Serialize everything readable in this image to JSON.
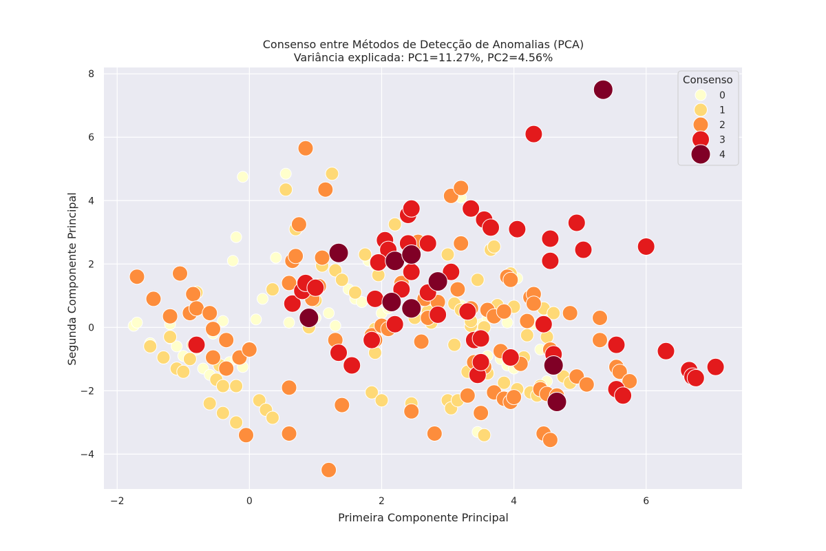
{
  "chart_data": {
    "type": "scatter",
    "title": "Consenso entre Métodos de Detecção de Anomalias (PCA)",
    "subtitle": "Variância explicada: PC1=11.27%, PC2=4.56%",
    "xlabel": "Primeira Componente Principal",
    "ylabel": "Segunda Componente Principal",
    "xlim": [
      -2.2,
      7.45
    ],
    "ylim": [
      -5.1,
      8.2
    ],
    "xticks": [
      -2,
      0,
      2,
      4,
      6
    ],
    "yticks": [
      -4,
      -2,
      0,
      2,
      4,
      6,
      8
    ],
    "grid": true,
    "legend": {
      "title": "Consenso",
      "position": "top-right",
      "entries": [
        {
          "label": "0",
          "color": "#ffffcc"
        },
        {
          "label": "1",
          "color": "#fed976"
        },
        {
          "label": "2",
          "color": "#fd8d3c"
        },
        {
          "label": "3",
          "color": "#e31a1c"
        },
        {
          "label": "4",
          "color": "#800026"
        }
      ]
    },
    "series": [
      {
        "name": "0",
        "points": [
          [
            -1.75,
            0.05
          ],
          [
            -1.7,
            0.15
          ],
          [
            -1.5,
            -0.5
          ],
          [
            -1.2,
            0.1
          ],
          [
            -1.2,
            -0.35
          ],
          [
            -1.1,
            -0.6
          ],
          [
            -1.0,
            -0.9
          ],
          [
            -0.9,
            -1.0
          ],
          [
            -0.8,
            -0.7
          ],
          [
            -0.7,
            -1.3
          ],
          [
            -0.6,
            -1.5
          ],
          [
            -0.55,
            -0.2
          ],
          [
            -0.4,
            0.2
          ],
          [
            -0.3,
            -1.1
          ],
          [
            -0.2,
            -1.0
          ],
          [
            -0.1,
            -1.25
          ],
          [
            -0.25,
            2.1
          ],
          [
            -0.2,
            2.85
          ],
          [
            -0.1,
            4.75
          ],
          [
            0.1,
            0.25
          ],
          [
            0.2,
            0.9
          ],
          [
            0.4,
            2.2
          ],
          [
            0.55,
            4.85
          ],
          [
            0.6,
            0.15
          ],
          [
            0.85,
            0.25
          ],
          [
            1.0,
            0.3
          ],
          [
            1.2,
            0.45
          ],
          [
            1.3,
            0.05
          ],
          [
            1.5,
            1.2
          ],
          [
            1.6,
            0.9
          ],
          [
            1.7,
            0.8
          ],
          [
            1.8,
            2.1
          ],
          [
            1.9,
            1.95
          ],
          [
            2.0,
            0.45
          ],
          [
            2.1,
            0.6
          ],
          [
            3.2,
            4.1
          ],
          [
            3.5,
            0.1
          ],
          [
            3.6,
            -0.9
          ],
          [
            3.8,
            -1.0
          ],
          [
            3.9,
            -1.2
          ],
          [
            3.9,
            0.15
          ],
          [
            4.05,
            1.55
          ],
          [
            4.3,
            0.1
          ],
          [
            4.4,
            -0.7
          ],
          [
            4.5,
            -1.7
          ],
          [
            4.6,
            -2.2
          ],
          [
            4.0,
            -1.3
          ],
          [
            3.45,
            -3.3
          ],
          [
            3.6,
            0.3
          ],
          [
            3.2,
            0.7
          ]
        ]
      },
      {
        "name": "1",
        "points": [
          [
            -1.5,
            -0.6
          ],
          [
            -1.2,
            -0.3
          ],
          [
            -1.1,
            -1.3
          ],
          [
            -1.0,
            -1.4
          ],
          [
            -0.9,
            -1.0
          ],
          [
            -0.85,
            -0.55
          ],
          [
            -0.8,
            1.1
          ],
          [
            -0.6,
            -2.4
          ],
          [
            -0.5,
            -1.65
          ],
          [
            -0.4,
            -2.7
          ],
          [
            -0.4,
            -1.85
          ],
          [
            -0.2,
            -3.0
          ],
          [
            -0.2,
            -1.85
          ],
          [
            0.0,
            -0.65
          ],
          [
            0.15,
            -2.3
          ],
          [
            0.25,
            -2.6
          ],
          [
            0.35,
            -2.85
          ],
          [
            0.35,
            1.2
          ],
          [
            0.55,
            4.35
          ],
          [
            0.7,
            3.1
          ],
          [
            0.85,
            1.4
          ],
          [
            0.9,
            0.0
          ],
          [
            1.0,
            0.85
          ],
          [
            1.1,
            1.95
          ],
          [
            1.25,
            4.85
          ],
          [
            1.3,
            1.8
          ],
          [
            1.4,
            1.5
          ],
          [
            1.6,
            1.1
          ],
          [
            1.75,
            2.3
          ],
          [
            1.85,
            -2.05
          ],
          [
            1.9,
            -0.8
          ],
          [
            1.95,
            1.65
          ],
          [
            2.0,
            -2.3
          ],
          [
            2.1,
            2.15
          ],
          [
            2.2,
            3.25
          ],
          [
            2.45,
            -2.4
          ],
          [
            2.45,
            0.7
          ],
          [
            2.5,
            2.6
          ],
          [
            2.7,
            0.5
          ],
          [
            2.75,
            0.15
          ],
          [
            3.0,
            -2.3
          ],
          [
            3.05,
            -2.55
          ],
          [
            3.1,
            -0.55
          ],
          [
            3.1,
            0.75
          ],
          [
            3.0,
            2.3
          ],
          [
            3.15,
            -2.3
          ],
          [
            3.2,
            0.55
          ],
          [
            3.3,
            -1.4
          ],
          [
            3.35,
            0.05
          ],
          [
            3.45,
            1.5
          ],
          [
            3.45,
            -1.15
          ],
          [
            3.55,
            -3.4
          ],
          [
            3.6,
            -1.45
          ],
          [
            3.7,
            0.5
          ],
          [
            3.75,
            0.7
          ],
          [
            3.85,
            -1.75
          ],
          [
            3.95,
            1.7
          ],
          [
            4.0,
            0.65
          ],
          [
            4.05,
            -1.95
          ],
          [
            4.15,
            -0.95
          ],
          [
            4.25,
            -2.05
          ],
          [
            4.35,
            -2.15
          ],
          [
            4.4,
            -1.85
          ],
          [
            4.45,
            0.6
          ],
          [
            4.5,
            -0.3
          ],
          [
            4.6,
            0.45
          ],
          [
            4.65,
            -2.3
          ],
          [
            4.75,
            -1.55
          ],
          [
            4.85,
            -1.75
          ],
          [
            3.65,
            2.45
          ],
          [
            3.7,
            2.55
          ],
          [
            4.2,
            -0.25
          ],
          [
            3.35,
            0.2
          ],
          [
            2.5,
            0.3
          ],
          [
            1.9,
            -0.05
          ],
          [
            3.55,
            0.0
          ],
          [
            -1.3,
            -0.95
          ],
          [
            -0.45,
            -1.2
          ]
        ]
      },
      {
        "name": "2",
        "points": [
          [
            -1.7,
            1.6
          ],
          [
            -1.45,
            0.9
          ],
          [
            -1.2,
            0.35
          ],
          [
            -1.05,
            1.7
          ],
          [
            -0.9,
            0.45
          ],
          [
            -0.85,
            1.05
          ],
          [
            -0.8,
            0.6
          ],
          [
            -0.6,
            0.45
          ],
          [
            -0.55,
            -0.95
          ],
          [
            -0.55,
            -0.05
          ],
          [
            -0.35,
            -1.3
          ],
          [
            -0.35,
            -0.4
          ],
          [
            -0.05,
            -3.4
          ],
          [
            -0.15,
            -0.95
          ],
          [
            0.0,
            -0.7
          ],
          [
            0.6,
            1.4
          ],
          [
            0.65,
            2.1
          ],
          [
            0.7,
            2.25
          ],
          [
            0.75,
            3.25
          ],
          [
            0.6,
            -1.9
          ],
          [
            0.6,
            -3.35
          ],
          [
            0.85,
            5.65
          ],
          [
            0.95,
            0.9
          ],
          [
            1.05,
            1.3
          ],
          [
            1.1,
            2.2
          ],
          [
            1.15,
            4.35
          ],
          [
            1.2,
            -4.5
          ],
          [
            1.3,
            -0.4
          ],
          [
            1.4,
            -2.45
          ],
          [
            1.85,
            -0.25
          ],
          [
            1.9,
            -0.4
          ],
          [
            2.0,
            0.05
          ],
          [
            2.1,
            -0.05
          ],
          [
            2.3,
            1.4
          ],
          [
            2.45,
            -2.65
          ],
          [
            2.55,
            2.7
          ],
          [
            2.6,
            -0.45
          ],
          [
            2.65,
            0.9
          ],
          [
            2.7,
            0.3
          ],
          [
            2.8,
            -3.35
          ],
          [
            2.85,
            0.8
          ],
          [
            3.05,
            4.15
          ],
          [
            3.15,
            1.2
          ],
          [
            3.2,
            2.65
          ],
          [
            3.2,
            4.4
          ],
          [
            3.3,
            -2.15
          ],
          [
            3.35,
            0.6
          ],
          [
            3.4,
            -1.1
          ],
          [
            3.5,
            -2.7
          ],
          [
            3.55,
            -1.25
          ],
          [
            3.6,
            0.55
          ],
          [
            3.7,
            0.35
          ],
          [
            3.7,
            -2.05
          ],
          [
            3.8,
            -0.75
          ],
          [
            3.85,
            0.5
          ],
          [
            3.85,
            -2.25
          ],
          [
            3.9,
            1.6
          ],
          [
            3.95,
            1.5
          ],
          [
            3.95,
            -2.35
          ],
          [
            4.0,
            -2.2
          ],
          [
            4.1,
            -1.15
          ],
          [
            4.2,
            0.2
          ],
          [
            4.25,
            0.95
          ],
          [
            4.3,
            1.05
          ],
          [
            4.3,
            0.75
          ],
          [
            4.4,
            -1.95
          ],
          [
            4.45,
            -3.35
          ],
          [
            4.5,
            -2.1
          ],
          [
            4.55,
            -0.7
          ],
          [
            4.55,
            -3.55
          ],
          [
            4.6,
            -1.15
          ],
          [
            4.65,
            -2.15
          ],
          [
            4.85,
            0.45
          ],
          [
            4.95,
            -1.55
          ],
          [
            5.1,
            -1.8
          ],
          [
            5.3,
            0.3
          ],
          [
            5.3,
            -0.4
          ],
          [
            5.55,
            -1.25
          ],
          [
            5.6,
            -1.4
          ],
          [
            5.75,
            -1.7
          ]
        ]
      },
      {
        "name": "3",
        "points": [
          [
            -0.8,
            -0.55
          ],
          [
            0.65,
            0.75
          ],
          [
            0.8,
            1.15
          ],
          [
            0.85,
            1.4
          ],
          [
            1.0,
            1.25
          ],
          [
            1.35,
            -0.8
          ],
          [
            1.55,
            -1.2
          ],
          [
            1.85,
            -0.4
          ],
          [
            1.9,
            0.9
          ],
          [
            2.05,
            2.75
          ],
          [
            2.1,
            2.45
          ],
          [
            2.2,
            0.1
          ],
          [
            2.3,
            1.2
          ],
          [
            2.4,
            2.65
          ],
          [
            2.4,
            3.55
          ],
          [
            2.45,
            3.75
          ],
          [
            2.45,
            1.75
          ],
          [
            2.7,
            2.65
          ],
          [
            2.7,
            1.1
          ],
          [
            2.85,
            0.4
          ],
          [
            3.05,
            1.75
          ],
          [
            3.3,
            0.5
          ],
          [
            3.35,
            3.75
          ],
          [
            3.4,
            -0.4
          ],
          [
            3.45,
            -1.5
          ],
          [
            3.5,
            -0.35
          ],
          [
            3.5,
            -1.1
          ],
          [
            3.55,
            3.4
          ],
          [
            3.65,
            3.15
          ],
          [
            3.95,
            -0.95
          ],
          [
            4.05,
            3.1
          ],
          [
            4.3,
            6.1
          ],
          [
            4.45,
            0.1
          ],
          [
            4.55,
            2.8
          ],
          [
            4.55,
            2.1
          ],
          [
            4.6,
            -0.85
          ],
          [
            4.95,
            3.3
          ],
          [
            5.05,
            2.45
          ],
          [
            5.55,
            -0.55
          ],
          [
            5.55,
            -1.95
          ],
          [
            5.65,
            -2.15
          ],
          [
            6.0,
            2.55
          ],
          [
            6.3,
            -0.75
          ],
          [
            6.65,
            -1.35
          ],
          [
            6.7,
            -1.55
          ],
          [
            6.75,
            -1.6
          ],
          [
            7.05,
            -1.25
          ],
          [
            1.95,
            2.05
          ]
        ]
      },
      {
        "name": "4",
        "points": [
          [
            0.9,
            0.3
          ],
          [
            1.35,
            2.35
          ],
          [
            2.15,
            0.8
          ],
          [
            2.2,
            2.1
          ],
          [
            2.45,
            2.3
          ],
          [
            2.45,
            0.6
          ],
          [
            2.85,
            1.45
          ],
          [
            4.6,
            -1.2
          ],
          [
            4.65,
            -2.35
          ],
          [
            5.35,
            7.5
          ]
        ]
      }
    ]
  }
}
